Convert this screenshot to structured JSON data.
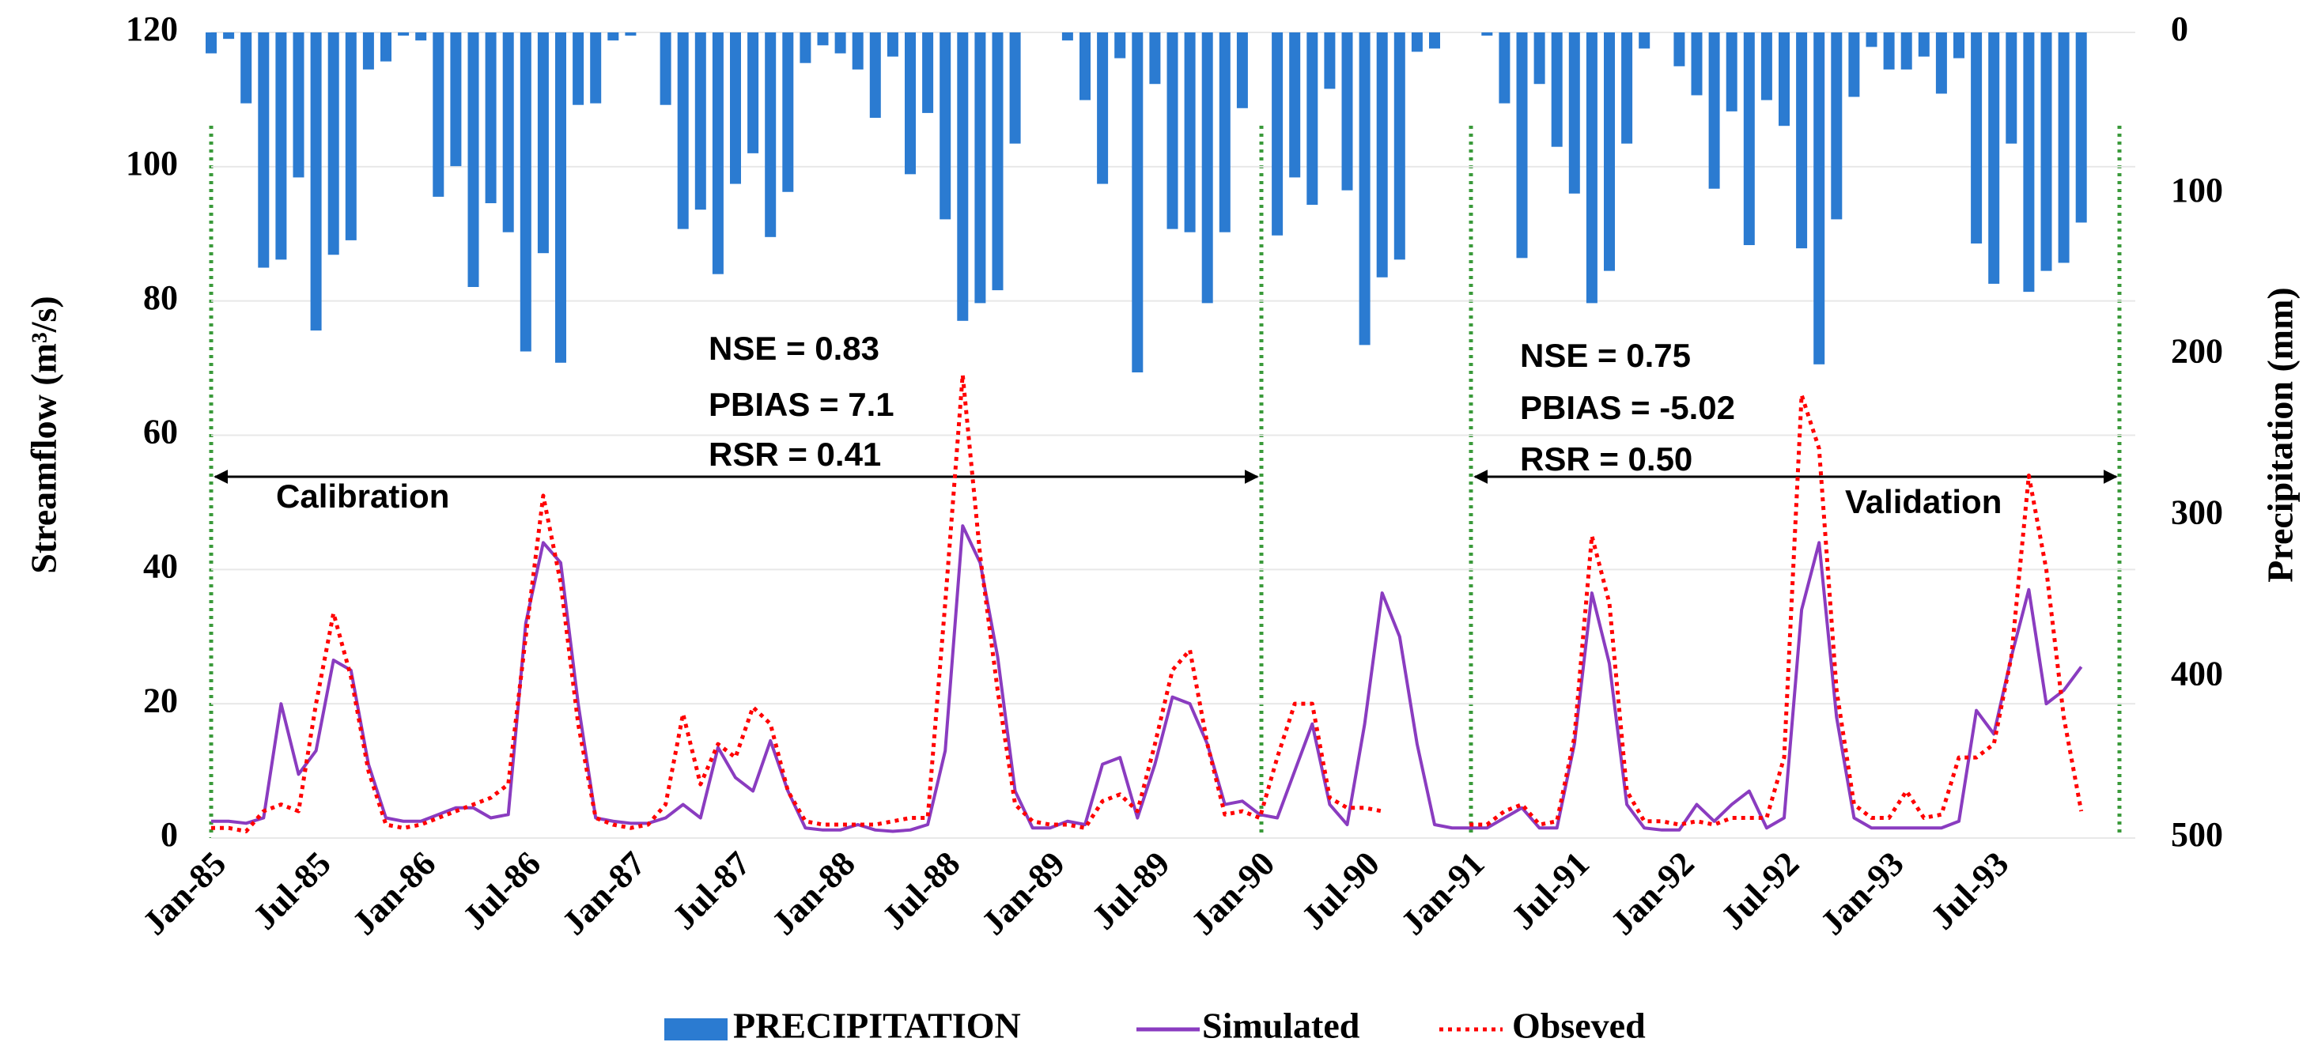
{
  "chart_data": {
    "type": "bar-line",
    "categories": [
      "Jan-85",
      null,
      null,
      null,
      null,
      null,
      "Jul-85",
      null,
      null,
      null,
      null,
      null,
      "Jan-86",
      null,
      null,
      null,
      null,
      null,
      "Jul-86",
      null,
      null,
      null,
      null,
      null,
      "Jan-87",
      null,
      null,
      null,
      null,
      null,
      "Jul-87",
      null,
      null,
      null,
      null,
      null,
      "Jan-88",
      null,
      null,
      null,
      null,
      null,
      "Jul-88",
      null,
      null,
      null,
      null,
      null,
      "Jan-89",
      null,
      null,
      null,
      null,
      null,
      "Jul-89",
      null,
      null,
      null,
      null,
      null,
      "Jan-90",
      null,
      null,
      null,
      null,
      null,
      "Jul-90",
      null,
      null,
      null,
      null,
      null,
      "Jan-91",
      null,
      null,
      null,
      null,
      null,
      "Jul-91",
      null,
      null,
      null,
      null,
      null,
      "Jan-92",
      null,
      null,
      null,
      null,
      null,
      "Jul-92",
      null,
      null,
      null,
      null,
      null,
      "Jan-93",
      null,
      null,
      null,
      null,
      null,
      "Jul-93",
      null,
      null,
      null,
      null,
      null
    ],
    "series": [
      {
        "name": "PRECIPITATION",
        "type": "bar",
        "axis": "y2",
        "color": "#2b7bd1",
        "values": [
          13,
          4,
          44,
          146,
          141,
          90,
          185,
          138,
          129,
          23,
          18,
          2,
          5,
          102,
          83,
          158,
          106,
          124,
          198,
          137,
          205,
          45,
          44,
          5,
          2,
          0,
          45,
          122,
          110,
          150,
          94,
          75,
          127,
          99,
          19,
          8,
          13,
          23,
          53,
          15,
          88,
          50,
          116,
          179,
          168,
          160,
          69,
          0,
          0,
          5,
          42,
          94,
          16,
          211,
          32,
          122,
          124,
          168,
          124,
          47,
          0,
          126,
          90,
          107,
          35,
          98,
          194,
          152,
          141,
          12,
          10,
          0,
          0,
          2,
          44,
          140,
          32,
          71,
          100,
          168,
          148,
          69,
          10,
          0,
          21,
          39,
          97,
          49,
          132,
          42,
          58,
          134,
          206,
          116,
          40,
          9,
          23,
          23,
          15,
          38,
          16,
          131,
          156,
          69,
          161,
          148,
          143,
          118
        ]
      },
      {
        "name": "Simulated",
        "type": "line",
        "color": "#8a3cc0",
        "values": [
          2.5,
          2.5,
          2.2,
          3,
          20,
          9.5,
          13,
          26.5,
          25,
          11,
          3,
          2.5,
          2.5,
          3.5,
          4.5,
          4.5,
          3,
          3.5,
          32,
          44,
          41,
          20,
          3,
          2.5,
          2.2,
          2.2,
          3,
          5,
          3,
          13.5,
          9,
          7,
          14.5,
          7,
          1.5,
          1.2,
          1.2,
          2,
          1.2,
          1,
          1.2,
          2,
          13,
          46.5,
          41,
          27,
          7,
          1.5,
          1.5,
          2.5,
          2,
          11,
          12,
          3,
          11,
          21,
          20,
          14,
          5,
          5.5,
          3.5,
          3,
          10,
          17,
          5,
          2,
          17,
          36.5,
          30,
          14,
          2,
          1.5,
          1.5,
          1.5,
          3,
          4.5,
          1.5,
          1.5,
          14,
          36.5,
          26,
          5,
          1.5,
          1.2,
          1.2,
          5,
          2.5,
          5,
          7,
          1.5,
          3,
          34,
          44,
          18,
          3,
          1.5,
          1.5,
          1.5,
          1.5,
          1.5,
          2.5,
          19,
          15.5,
          27,
          37,
          20,
          22,
          25.5
        ]
      },
      {
        "name": "Obseved",
        "type": "line",
        "dash": true,
        "color": "#ff0000",
        "values": [
          1.5,
          1.5,
          1,
          4,
          5,
          4,
          20,
          33.5,
          24,
          10,
          2,
          1.5,
          2,
          3,
          4,
          5,
          6,
          8,
          30,
          51,
          38,
          17,
          3,
          2,
          1.5,
          2,
          5,
          18.5,
          8,
          14,
          12,
          19.5,
          17,
          7,
          2.5,
          2,
          2,
          2,
          2,
          2.5,
          3,
          3,
          35,
          69,
          42,
          22,
          5,
          2.5,
          2,
          2,
          1.5,
          5.5,
          6.5,
          4,
          14,
          25,
          28,
          14,
          3.5,
          4,
          3,
          12,
          20,
          20,
          6,
          4.5,
          4.5,
          4,
          null,
          null,
          null,
          null,
          2,
          2,
          4,
          5,
          2,
          2.5,
          15,
          45,
          35,
          7,
          2.5,
          2.5,
          2,
          2.5,
          2,
          3,
          3,
          3,
          12,
          66,
          58,
          22,
          5,
          3,
          3,
          7,
          3,
          3.5,
          12,
          12,
          14,
          27,
          54,
          40,
          18,
          4
        ]
      }
    ],
    "ylabel": "Streamflow (m³/s)",
    "y2label": "Precipitation (mm)",
    "ylim": [
      0,
      120
    ],
    "yticks": [
      0,
      20,
      40,
      60,
      80,
      100,
      120
    ],
    "y2lim": [
      0,
      500
    ],
    "y2ticks": [
      0,
      100,
      200,
      300,
      400,
      500
    ],
    "y2_inverted": true,
    "annotations": {
      "calibration": [
        "NSE = 0.83",
        "PBIAS = 7.1",
        "RSR = 0.41"
      ],
      "calibration_label": "Calibration",
      "validation": [
        "NSE = 0.75",
        "PBIAS = -5.02",
        "RSR = 0.50"
      ],
      "validation_label": "Validation"
    },
    "legend": "bottom"
  }
}
